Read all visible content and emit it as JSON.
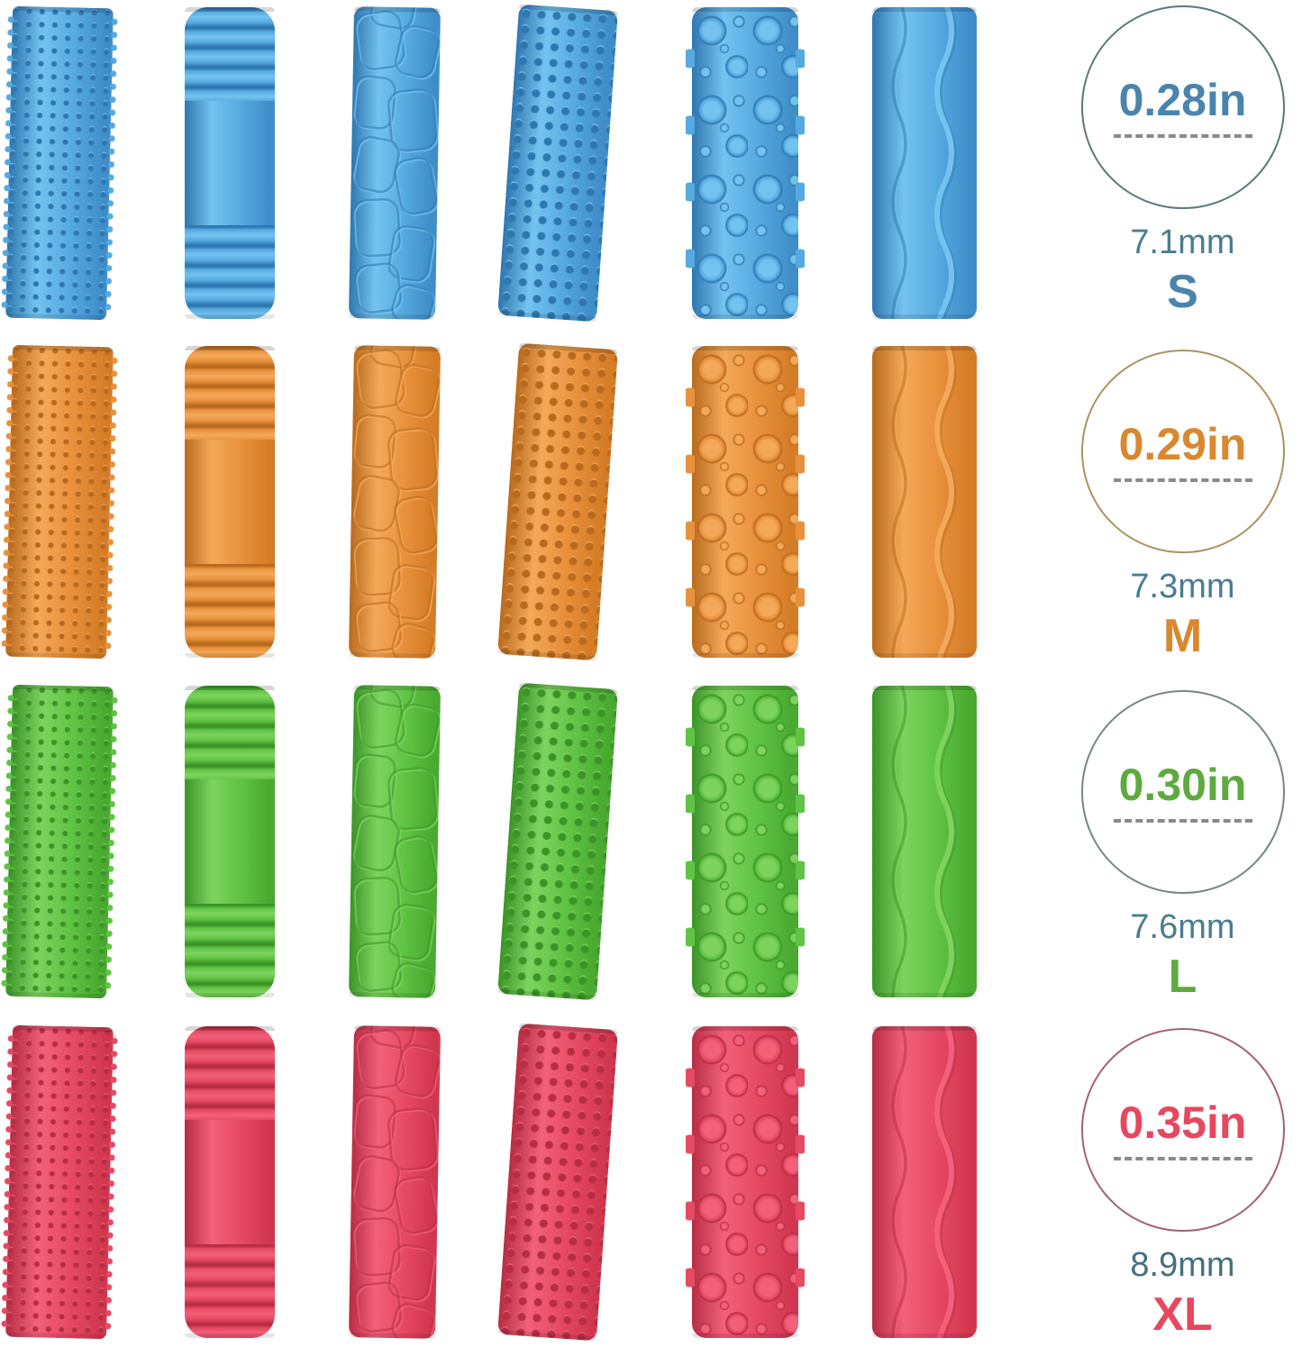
{
  "tube_grid": {
    "rows": [
      {
        "size": "S",
        "color_name": "blue",
        "palette": {
          "light": "#74c3ef",
          "mid": "#55aadf",
          "dark": "#3f8dc9",
          "deep": "#2f77b0"
        }
      },
      {
        "size": "M",
        "color_name": "orange",
        "palette": {
          "light": "#f3a959",
          "mid": "#e8913c",
          "dark": "#d47c26",
          "deep": "#b96a1e"
        }
      },
      {
        "size": "L",
        "color_name": "green",
        "palette": {
          "light": "#7ed35f",
          "mid": "#5fc343",
          "dark": "#49a930",
          "deep": "#3c9428"
        }
      },
      {
        "size": "XL",
        "color_name": "red",
        "palette": {
          "light": "#f2607a",
          "mid": "#e64a62",
          "dark": "#d0374f",
          "deep": "#b72d44"
        }
      }
    ],
    "columns": [
      {
        "texture": "pins"
      },
      {
        "texture": "ribbed"
      },
      {
        "texture": "cobblestone"
      },
      {
        "texture": "dots"
      },
      {
        "texture": "bubbles"
      },
      {
        "texture": "waves"
      }
    ]
  },
  "size_indicators": [
    {
      "size_label": "S",
      "inches": "0.28in",
      "millimeters": "7.1mm",
      "accent_color": "#4a84ad",
      "ring_color": "#5e777c",
      "mm_color": "#4a7c90"
    },
    {
      "size_label": "M",
      "inches": "0.29in",
      "millimeters": "7.3mm",
      "accent_color": "#d9882f",
      "ring_color": "#a79562",
      "mm_color": "#4a7c90"
    },
    {
      "size_label": "L",
      "inches": "0.30in",
      "millimeters": "7.6mm",
      "accent_color": "#5dab3f",
      "ring_color": "#75897b",
      "mm_color": "#4a7c90"
    },
    {
      "size_label": "XL",
      "inches": "0.35in",
      "millimeters": "8.9mm",
      "accent_color": "#e6485f",
      "ring_color": "#a2607b",
      "mm_color": "#43707f"
    }
  ]
}
